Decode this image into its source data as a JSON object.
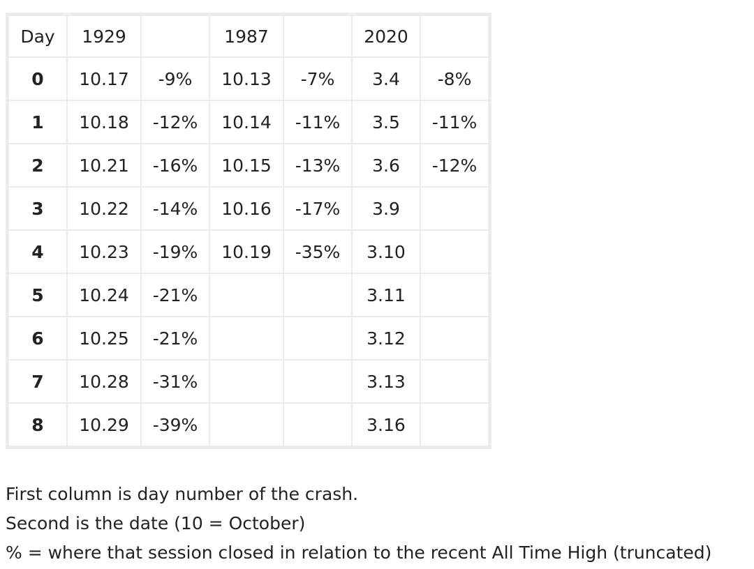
{
  "table": {
    "header": [
      "Day",
      "1929",
      "1987",
      "2020"
    ],
    "rows": [
      {
        "day": "0",
        "cells": [
          "10.17",
          "-9%",
          "10.13",
          "-7%",
          "3.4",
          "-8%"
        ]
      },
      {
        "day": "1",
        "cells": [
          "10.18",
          "-12%",
          "10.14",
          "-11%",
          "3.5",
          "-11%"
        ]
      },
      {
        "day": "2",
        "cells": [
          "10.21",
          "-16%",
          "10.15",
          "-13%",
          "3.6",
          "-12%"
        ]
      },
      {
        "day": "3",
        "cells": [
          "10.22",
          "-14%",
          "10.16",
          "-17%",
          "3.9",
          null
        ]
      },
      {
        "day": "4",
        "cells": [
          "10.23",
          "-19%",
          "10.19",
          "-35%",
          "3.10",
          null
        ]
      },
      {
        "day": "5",
        "cells": [
          "10.24",
          "-21%",
          null,
          null,
          "3.11",
          null
        ]
      },
      {
        "day": "6",
        "cells": [
          "10.25",
          "-21%",
          null,
          null,
          "3.12",
          null
        ]
      },
      {
        "day": "7",
        "cells": [
          "10.28",
          "-31%",
          null,
          null,
          "3.13",
          null
        ]
      },
      {
        "day": "8",
        "cells": [
          "10.29",
          "-39%",
          null,
          null,
          "3.16",
          null
        ]
      }
    ]
  },
  "notes": [
    "First column is day number of the crash.",
    "Second is the date (10 = October)",
    "% = where that session closed in relation to the recent All Time High (truncated)"
  ]
}
